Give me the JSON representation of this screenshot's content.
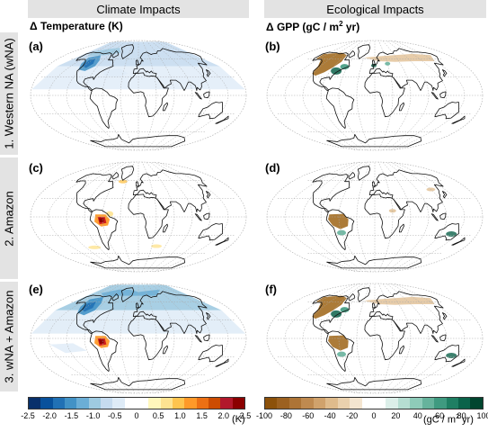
{
  "headers": {
    "left_column": "Climate Impacts",
    "right_column": "Ecological Impacts",
    "rows": [
      "1. Western NA (wNA)",
      "2. Amazon",
      "3. wNA + Amazon"
    ]
  },
  "titles": {
    "temperature": "Δ Temperature (K)",
    "gpp_prefix": "Δ GPP (gC / m",
    "gpp_sup": "2",
    "gpp_suffix": " yr)"
  },
  "panels": [
    {
      "label": "(a)",
      "variable": "temperature",
      "scenario": "Western NA (wNA)"
    },
    {
      "label": "(b)",
      "variable": "gpp",
      "scenario": "Western NA (wNA)"
    },
    {
      "label": "(c)",
      "variable": "temperature",
      "scenario": "Amazon"
    },
    {
      "label": "(d)",
      "variable": "gpp",
      "scenario": "Amazon"
    },
    {
      "label": "(e)",
      "variable": "temperature",
      "scenario": "wNA + Amazon"
    },
    {
      "label": "(f)",
      "variable": "gpp",
      "scenario": "wNA + Amazon"
    }
  ],
  "colorbars": {
    "temperature": {
      "ticks": [
        "-2.5",
        "-2.0",
        "-1.5",
        "-1.0",
        "-0.5",
        "0",
        "0.5",
        "1.0",
        "1.5",
        "2.0",
        "2.5"
      ],
      "range": [
        -2.5,
        2.5
      ],
      "colors": [
        "#08306b",
        "#08519c",
        "#2171b5",
        "#4292c6",
        "#6baed6",
        "#9ecae1",
        "#c6dbef",
        "#deebf7",
        "#ffffff",
        "#ffffff",
        "#fff7bc",
        "#fee391",
        "#fec44f",
        "#fe9929",
        "#ec7014",
        "#cc4c02",
        "#b2182b",
        "#8b0000"
      ],
      "unit": "(K)"
    },
    "gpp": {
      "ticks": [
        "-100",
        "-80",
        "-60",
        "-40",
        "-20",
        "0",
        "20",
        "40",
        "60",
        "80",
        "100"
      ],
      "range": [
        -100,
        100
      ],
      "colors": [
        "#8c510a",
        "#9c6120",
        "#ad7436",
        "#bf8a50",
        "#d0a26c",
        "#dfbb8c",
        "#ead1ae",
        "#f4e5d0",
        "#ffffff",
        "#ffffff",
        "#dcefe9",
        "#b6ded2",
        "#8ecbb9",
        "#66b39c",
        "#3f9a80",
        "#1f7f63",
        "#0b634a",
        "#01452f"
      ],
      "unit_prefix": "(gC / m",
      "unit_sup": "2",
      "unit_suffix": " yr)"
    }
  },
  "colors": {
    "header_bg": "#e3e3e3",
    "coast": "#111111",
    "grid": "#aaaaaa",
    "cool": "#6baed6",
    "warm": "#cb181d",
    "gpp_decrease": "#a8742d",
    "gpp_increase": "#1b6b55"
  }
}
